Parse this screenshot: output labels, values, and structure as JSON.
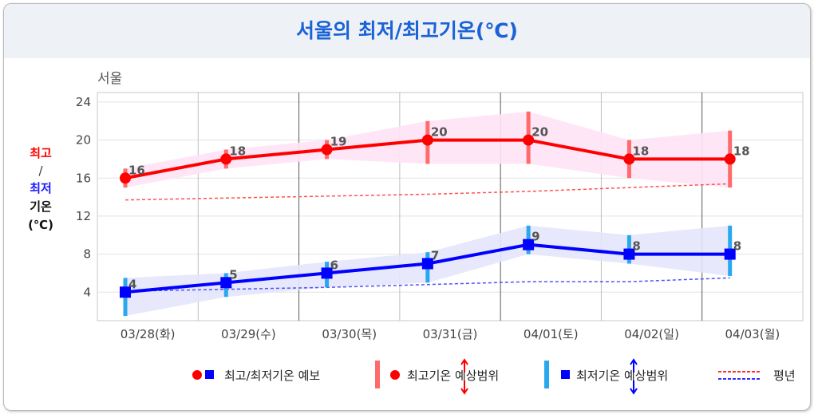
{
  "title": "서울의 최저/최고기온(℃)",
  "region": "서울",
  "ylabel": {
    "max": "최고",
    "sep": "/",
    "min": "최저",
    "unit1": "기온",
    "unit2": "(℃)"
  },
  "colors": {
    "max": "#ff0000",
    "min": "#0000ff",
    "max_range": "#ff6b6b",
    "min_range": "#2aa8ee",
    "max_band": "#ffe3f6",
    "min_band": "#e4e5fb",
    "max_normal": "#ff5050",
    "min_normal": "#5050ff",
    "title": "#1a63d6"
  },
  "legend": {
    "forecast": "최고/최저기온 예보",
    "max_range": "최고기온 예상범위",
    "min_range": "최저기온 예상범위",
    "normal": "평년"
  },
  "chart_data": {
    "type": "line",
    "categories": [
      "03/28(화)",
      "03/29(수)",
      "03/30(목)",
      "03/31(금)",
      "04/01(토)",
      "04/02(일)",
      "04/03(월)"
    ],
    "yticks": [
      4,
      8,
      12,
      16,
      20,
      24
    ],
    "ylim": [
      1,
      25
    ],
    "grid": true,
    "legend_position": "bottom",
    "series": [
      {
        "name": "최고기온",
        "values": [
          16,
          18,
          19,
          20,
          20,
          18,
          18
        ],
        "range_low": [
          15,
          17,
          18,
          17.5,
          17.5,
          16,
          15
        ],
        "range_high": [
          17,
          19,
          20,
          22,
          23,
          20,
          21
        ],
        "normal": [
          13.7,
          13.9,
          14.1,
          14.3,
          14.6,
          15,
          15.4
        ]
      },
      {
        "name": "최저기온",
        "values": [
          4,
          5,
          6,
          7,
          9,
          8,
          8
        ],
        "range_low": [
          1.5,
          3.5,
          4.5,
          5,
          8,
          7,
          5.7
        ],
        "range_high": [
          5.5,
          6,
          7.2,
          8.2,
          11,
          10,
          11
        ],
        "normal": [
          4.1,
          4.3,
          4.5,
          4.8,
          5.1,
          5.1,
          5.5
        ]
      }
    ]
  }
}
